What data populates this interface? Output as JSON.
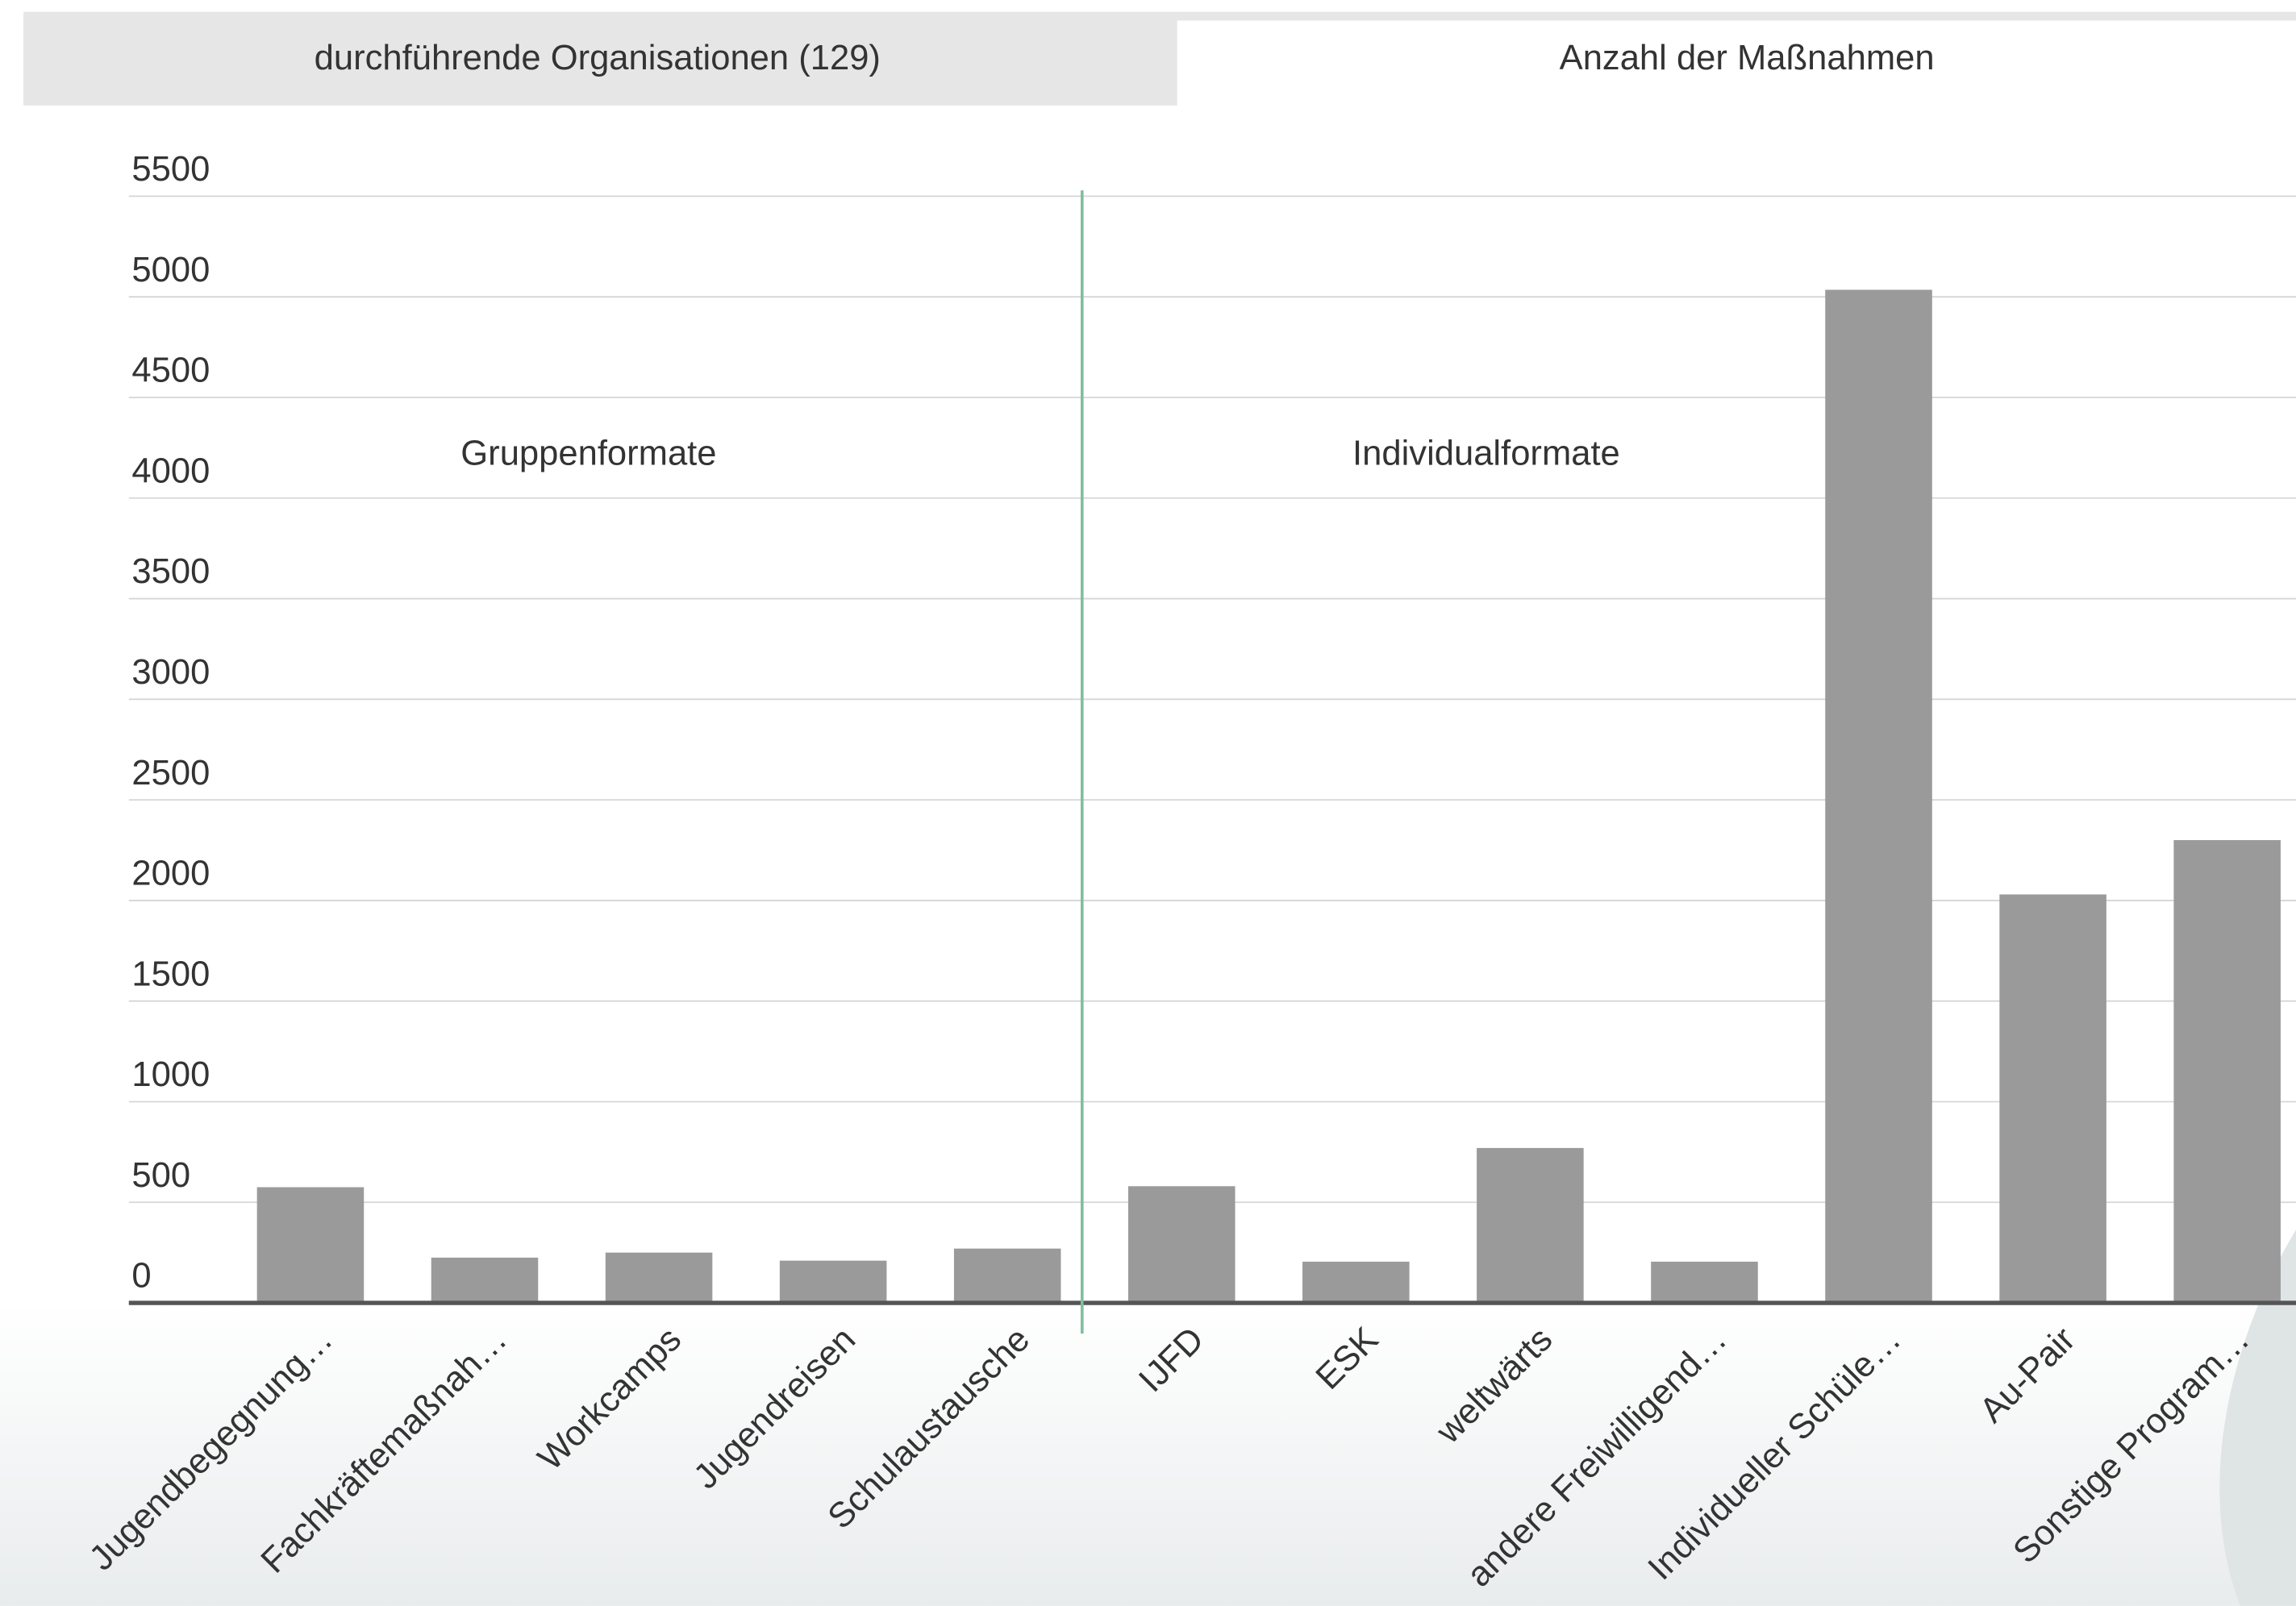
{
  "tabs": [
    "durchführende Organisationen (129)",
    "Anzahl der Maßnahmen"
  ],
  "chart_data": {
    "type": "bar",
    "annotations": [
      "Gruppenformate",
      "Individualformate"
    ],
    "categories": [
      "Jugendbegegnung…",
      "Fachkräftemaßnah…",
      "Workcamps",
      "Jugendreisen",
      "Schulaustausche",
      "IJFD",
      "ESK",
      "weltwärts",
      "andere Freiwilligend…",
      "Individueller Schüle…",
      "Au-Pair",
      "Sonstige Program…"
    ],
    "values": [
      575,
      225,
      250,
      210,
      270,
      580,
      205,
      770,
      205,
      5035,
      2030,
      2300
    ],
    "color": "#9a9a9a",
    "ylim": [
      0,
      5500
    ],
    "yticks": [
      0,
      500,
      1000,
      1500,
      2000,
      2500,
      3000,
      3500,
      4000,
      4500,
      5000,
      5500
    ],
    "grid": true
  }
}
